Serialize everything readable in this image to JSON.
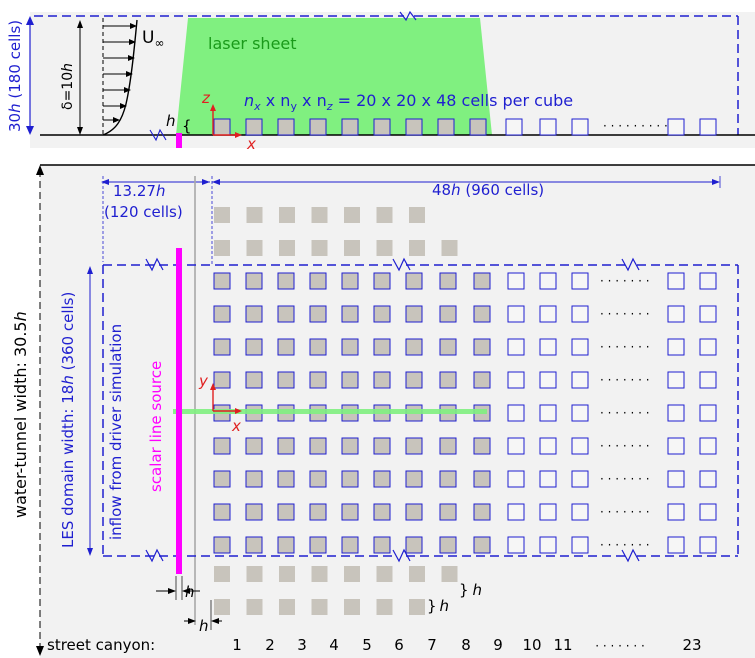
{
  "side_view": {
    "height_label": "30h (180 cells)",
    "height_label_parts": [
      "30",
      "h",
      " (180 cells)"
    ],
    "bl_label_parts": [
      "δ=10",
      "h"
    ],
    "freestream_label": "U",
    "freestream_sub": "∞",
    "laser_sheet_label": "laser sheet",
    "cells_per_cube_parts": [
      "n",
      "x",
      " x n",
      "y",
      " x n",
      "z",
      " = 20 x 20 x 48 cells per cube"
    ],
    "cube_height_label": "h",
    "brace": "{",
    "axis_z": "z",
    "axis_x": "x",
    "dots": "· · · · · · · · ·"
  },
  "plan_view": {
    "inflow_length_parts": [
      "13.27",
      "h"
    ],
    "inflow_cells": "(120 cells)",
    "domain_length_parts": [
      "48",
      "h",
      " (960 cells)"
    ],
    "tunnel_width_parts": [
      "water-tunnel width: 30.5",
      "h"
    ],
    "les_width_parts": [
      "LES domain width: 18",
      "h",
      " (360 cells)"
    ],
    "inflow_label": "inflow from driver simulation",
    "source_label": "scalar line source",
    "axis_y": "y",
    "axis_x": "x",
    "gap_label_1": "h",
    "gap_label_2": "h",
    "brace_label_1_parts": [
      "}",
      "h"
    ],
    "brace_label_2_parts": [
      "}",
      "h"
    ],
    "dots": "· · · · · · ·",
    "street_canyon_label": "street canyon:",
    "canyon_numbers": [
      "1",
      "2",
      "3",
      "4",
      "5",
      "6",
      "7",
      "8",
      "9",
      "10",
      "11",
      "· · · · · · ·",
      "23"
    ]
  },
  "colors": {
    "domain_blue": "#1f1fd0",
    "laser_green": "#80f080",
    "source_magenta": "#ff00ff",
    "axis_red": "#e02020",
    "cube_grey": "#c8c4bc",
    "panel_grey": "#f2f2f2"
  }
}
